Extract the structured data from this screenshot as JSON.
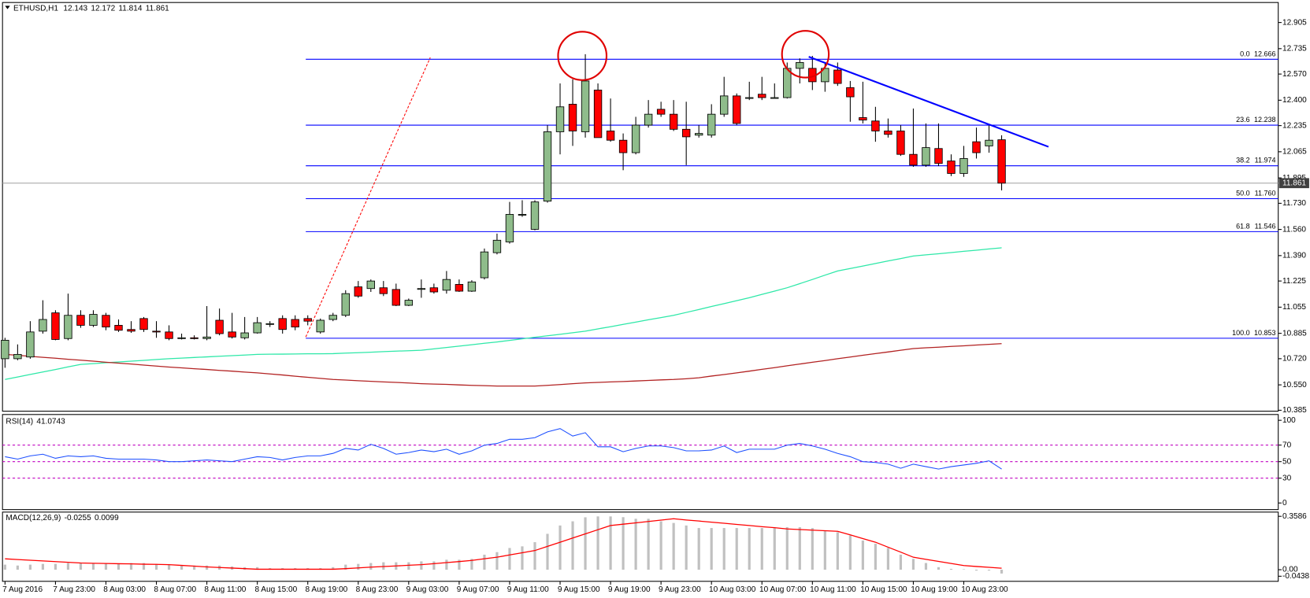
{
  "chart_data": [
    {
      "type": "candlestick",
      "title": "ETHUSD,H1",
      "categories": [
        "7 Aug 2016",
        null,
        null,
        null,
        "7 Aug 23:00",
        null,
        null,
        null,
        "8 Aug 03:00",
        null,
        null,
        null,
        "8 Aug 07:00",
        null,
        null,
        null,
        "8 Aug 11:00",
        null,
        null,
        null,
        "8 Aug 15:00",
        null,
        null,
        null,
        "8 Aug 19:00",
        null,
        null,
        null,
        "8 Aug 23:00",
        null,
        null,
        null,
        "9 Aug 03:00",
        null,
        null,
        null,
        "9 Aug 07:00",
        null,
        null,
        null,
        "9 Aug 11:00",
        null,
        null,
        null,
        "9 Aug 15:00",
        null,
        null,
        null,
        "9 Aug 19:00",
        null,
        null,
        null,
        "9 Aug 23:00",
        null,
        null,
        null,
        "10 Aug 03:00",
        null,
        null,
        null,
        "10 Aug 07:00",
        null,
        null,
        null,
        "10 Aug 11:00",
        null,
        null,
        null,
        "10 Aug 15:00",
        null,
        null,
        null,
        "10 Aug 19:00",
        null,
        null,
        null,
        "10 Aug 23:00",
        null,
        null,
        null
      ],
      "open": [
        10.72,
        10.72,
        10.731,
        10.899,
        11.018,
        10.851,
        11.002,
        10.937,
        11.002,
        10.937,
        10.91,
        10.981,
        10.899,
        10.894,
        10.856,
        10.856,
        10.851,
        10.97,
        10.894,
        10.856,
        10.888,
        10.948,
        10.981,
        10.975,
        10.981,
        10.894,
        10.975,
        11.002,
        11.187,
        11.176,
        11.181,
        11.17,
        11.067,
        11.176,
        11.181,
        11.165,
        11.203,
        11.159,
        11.246,
        11.409,
        11.479,
        11.658,
        11.561,
        11.744,
        12.195,
        12.374,
        12.195,
        12.466,
        12.2,
        12.14,
        12.059,
        12.238,
        12.341,
        12.309,
        12.211,
        12.173,
        12.173,
        12.309,
        12.428,
        12.417,
        12.439,
        12.417,
        12.417,
        12.607,
        12.607,
        12.52,
        12.596,
        12.482,
        12.287,
        12.265,
        12.2,
        12.2,
        12.048,
        11.978,
        12.086,
        12.005,
        11.924,
        12.13,
        12.103,
        12.143
      ],
      "high": [
        10.856,
        10.813,
        10.964,
        11.1,
        11.035,
        11.143,
        11.035,
        11.035,
        11.018,
        10.975,
        10.964,
        10.991,
        10.964,
        10.937,
        10.883,
        10.872,
        11.062,
        11.046,
        11.018,
        10.991,
        10.991,
        10.964,
        11.002,
        11.002,
        11.002,
        10.981,
        11.018,
        11.165,
        11.225,
        11.235,
        11.225,
        11.208,
        11.111,
        11.235,
        11.208,
        11.29,
        11.235,
        11.23,
        11.436,
        11.533,
        11.739,
        11.75,
        11.75,
        12.238,
        12.509,
        12.536,
        12.699,
        12.509,
        12.411,
        12.184,
        12.292,
        12.401,
        12.39,
        12.401,
        12.39,
        12.238,
        12.374,
        12.552,
        12.444,
        12.52,
        12.552,
        12.509,
        12.645,
        12.672,
        12.688,
        12.639,
        12.645,
        12.525,
        12.52,
        12.357,
        12.281,
        12.238,
        12.346,
        12.249,
        12.249,
        12.048,
        12.103,
        12.222,
        12.238,
        12.172
      ],
      "low": [
        10.661,
        10.71,
        10.72,
        10.883,
        10.84,
        10.84,
        10.921,
        10.926,
        10.905,
        10.894,
        10.888,
        10.894,
        10.856,
        10.84,
        10.845,
        10.845,
        10.84,
        10.872,
        10.851,
        10.845,
        10.883,
        10.926,
        10.883,
        10.905,
        10.937,
        10.883,
        10.964,
        10.991,
        11.116,
        11.154,
        11.127,
        11.062,
        11.062,
        11.116,
        11.143,
        11.143,
        11.154,
        11.154,
        11.235,
        11.398,
        11.468,
        11.642,
        11.555,
        11.734,
        12.048,
        12.103,
        12.157,
        12.157,
        12.13,
        11.945,
        12.048,
        12.222,
        12.292,
        12.2,
        11.978,
        12.157,
        12.157,
        12.292,
        12.238,
        12.401,
        12.401,
        12.411,
        12.411,
        12.509,
        12.466,
        12.455,
        12.493,
        12.26,
        12.249,
        12.13,
        12.157,
        12.038,
        11.967,
        11.967,
        11.972,
        11.907,
        11.902,
        12.021,
        12.059,
        11.814
      ],
      "close": [
        10.84,
        10.748,
        10.894,
        10.975,
        10.845,
        11.002,
        10.937,
        11.008,
        10.926,
        10.905,
        10.899,
        10.91,
        10.894,
        10.851,
        10.856,
        10.851,
        10.861,
        10.883,
        10.861,
        10.888,
        10.954,
        10.948,
        10.91,
        10.926,
        10.964,
        10.97,
        11.002,
        11.143,
        11.127,
        11.225,
        11.143,
        11.067,
        11.1,
        11.176,
        11.154,
        11.235,
        11.159,
        11.219,
        11.414,
        11.49,
        11.658,
        11.658,
        11.739,
        12.195,
        12.357,
        12.2,
        12.525,
        12.157,
        12.14,
        12.059,
        12.238,
        12.309,
        12.309,
        12.211,
        12.162,
        12.184,
        12.309,
        12.428,
        12.249,
        12.417,
        12.417,
        12.417,
        12.607,
        12.645,
        12.52,
        12.607,
        12.509,
        12.422,
        12.271,
        12.2,
        12.178,
        12.048,
        11.978,
        12.092,
        11.989,
        11.924,
        12.021,
        12.059,
        12.14,
        11.861
      ],
      "up_color": "#8fbc8b",
      "down_color": "#ff0000",
      "series": [
        {
          "type": "line",
          "color": "#2ee8a8",
          "values": [
            10.585,
            10.601,
            10.618,
            10.634,
            10.65,
            10.667,
            10.683,
            10.688,
            10.694,
            10.699,
            10.704,
            10.709,
            10.715,
            10.72,
            10.724,
            10.728,
            10.732,
            10.736,
            10.74,
            10.744,
            10.748,
            10.749,
            10.75,
            10.751,
            10.752,
            10.752,
            10.753,
            10.756,
            10.759,
            10.762,
            10.766,
            10.769,
            10.772,
            10.775,
            10.784,
            10.793,
            10.802,
            10.811,
            10.82,
            10.829,
            10.839,
            10.849,
            10.859,
            10.869,
            10.879,
            10.889,
            10.899,
            10.914,
            10.928,
            10.943,
            10.958,
            10.973,
            10.987,
            11.002,
            11.021,
            11.04,
            11.059,
            11.078,
            11.097,
            11.116,
            11.138,
            11.159,
            11.181,
            11.208,
            11.235,
            11.263,
            11.29,
            11.306,
            11.322,
            11.339,
            11.355,
            11.371,
            11.387,
            11.395,
            11.402,
            11.41,
            11.418,
            11.425,
            11.433,
            11.441
          ]
        },
        {
          "type": "line",
          "color": "#b22222",
          "values": [
            10.748,
            10.742,
            10.735,
            10.729,
            10.723,
            10.716,
            10.71,
            10.704,
            10.697,
            10.691,
            10.685,
            10.679,
            10.672,
            10.666,
            10.661,
            10.655,
            10.65,
            10.644,
            10.639,
            10.633,
            10.628,
            10.621,
            10.614,
            10.606,
            10.599,
            10.592,
            10.585,
            10.581,
            10.577,
            10.573,
            10.569,
            10.566,
            10.562,
            10.558,
            10.555,
            10.553,
            10.55,
            10.547,
            10.545,
            10.542,
            10.542,
            10.542,
            10.542,
            10.547,
            10.552,
            10.558,
            10.563,
            10.566,
            10.569,
            10.572,
            10.575,
            10.579,
            10.582,
            10.585,
            10.59,
            10.596,
            10.607,
            10.617,
            10.628,
            10.639,
            10.651,
            10.662,
            10.674,
            10.685,
            10.697,
            10.708,
            10.72,
            10.731,
            10.742,
            10.753,
            10.764,
            10.775,
            10.786,
            10.791,
            10.795,
            10.8,
            10.804,
            10.809,
            10.813,
            10.818
          ]
        }
      ],
      "fib_color": "#0000ff",
      "fib_levels": [
        {
          "level": "0.0",
          "price": 12.666
        },
        {
          "level": "23.6",
          "price": 12.238
        },
        {
          "level": "38.2",
          "price": 11.974
        },
        {
          "level": "50.0",
          "price": 11.76,
          "price_label": "11.760"
        },
        {
          "level": "61.8",
          "price": 11.546
        },
        {
          "level": "100.0",
          "price": 10.853
        }
      ],
      "ylim": [
        10.379,
        13.035
      ],
      "yticks": [
        12.905,
        12.735,
        {
          "value": 12.57,
          "label": "12.570"
        },
        {
          "value": 12.4,
          "label": "12.400"
        },
        12.235,
        12.065,
        11.895,
        {
          "value": 11.73,
          "label": "11.730"
        },
        {
          "value": 11.56,
          "label": "11.560"
        },
        {
          "value": 11.39,
          "label": "11.390"
        },
        11.225,
        11.055,
        10.885,
        {
          "value": 10.72,
          "label": "10.720"
        },
        {
          "value": 10.55,
          "label": "10.550"
        },
        10.385
      ]
    },
    {
      "type": "line",
      "title": "RSI(14)",
      "series": [
        {
          "color": "#1e50ff",
          "values": [
            56,
            53,
            57,
            59,
            54,
            57,
            56,
            57,
            54,
            53,
            53,
            53,
            52,
            50,
            50,
            51,
            52,
            51,
            50,
            53,
            56,
            55,
            52,
            55,
            57,
            57,
            60,
            66,
            64,
            71,
            66,
            59,
            61,
            64,
            62,
            65,
            59,
            63,
            70,
            72,
            77,
            77,
            79,
            86,
            90,
            81,
            85,
            68,
            68,
            62,
            66,
            69,
            69,
            67,
            63,
            63,
            64,
            69,
            61,
            65,
            65,
            65,
            70,
            72,
            69,
            65,
            60,
            56,
            50,
            49,
            47,
            42,
            47,
            44,
            41,
            44,
            46,
            48,
            51,
            41.0743
          ]
        }
      ],
      "levels": [
        70,
        50,
        30
      ],
      "level_color": "#c000c0",
      "ylim": [
        -8,
        107
      ],
      "yticks": [
        100,
        70,
        50,
        30,
        0
      ]
    },
    {
      "type": "bar",
      "title": "MACD(12,26,9)",
      "series": [
        {
          "color": "#c0c0c0",
          "values": [
            0.034,
            0.028,
            0.034,
            0.039,
            0.039,
            0.045,
            0.045,
            0.045,
            0.045,
            0.039,
            0.045,
            0.045,
            0.039,
            0.034,
            0.028,
            0.028,
            0.028,
            0.028,
            0.022,
            0.017,
            0.017,
            0.011,
            0.011,
            0.011,
            0.011,
            0.011,
            0.017,
            0.034,
            0.039,
            0.045,
            0.05,
            0.05,
            0.05,
            0.056,
            0.056,
            0.067,
            0.067,
            0.073,
            0.101,
            0.118,
            0.146,
            0.157,
            0.185,
            0.241,
            0.297,
            0.325,
            0.352,
            0.358,
            0.358,
            0.353,
            0.342,
            0.342,
            0.325,
            0.314,
            0.297,
            0.28,
            0.28,
            0.28,
            0.28,
            0.28,
            0.28,
            0.28,
            0.286,
            0.286,
            0.28,
            0.263,
            0.252,
            0.23,
            0.196,
            0.174,
            0.146,
            0.101,
            0.073,
            0.045,
            0.017,
            0.006,
            0.003,
            -0.006,
            -0.006,
            -0.0255
          ]
        },
        {
          "type": "line",
          "color": "#ff0000",
          "values": [
            0.073,
            0.068,
            0.064,
            0.059,
            0.054,
            0.05,
            0.045,
            0.043,
            0.042,
            0.04,
            0.039,
            0.037,
            0.036,
            0.034,
            0.029,
            0.024,
            0.019,
            0.015,
            0.011,
            0.007,
            0.003,
            0.003,
            0.003,
            0.003,
            0.003,
            0.003,
            0.003,
            0.007,
            0.012,
            0.017,
            0.021,
            0.025,
            0.03,
            0.034,
            0.041,
            0.048,
            0.055,
            0.062,
            0.073,
            0.084,
            0.099,
            0.114,
            0.129,
            0.157,
            0.185,
            0.213,
            0.241,
            0.269,
            0.297,
            0.306,
            0.315,
            0.324,
            0.333,
            0.342,
            0.334,
            0.327,
            0.319,
            0.312,
            0.304,
            0.297,
            0.289,
            0.282,
            0.274,
            0.27,
            0.266,
            0.262,
            0.258,
            0.234,
            0.209,
            0.185,
            0.151,
            0.118,
            0.084,
            0.07,
            0.056,
            0.042,
            0.028,
            0.022,
            0.016,
            0.0099
          ]
        }
      ],
      "ylim": [
        -0.078,
        0.387
      ],
      "yticks": [
        0.3586,
        {
          "value": 0,
          "label": "0.00"
        },
        -0.0438
      ]
    }
  ]
}
